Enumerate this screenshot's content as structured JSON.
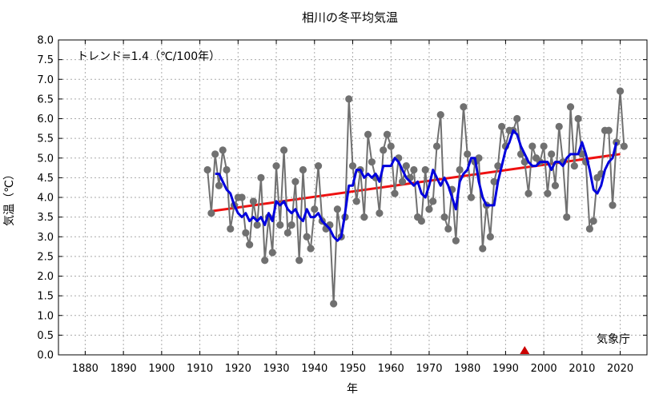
{
  "chart_data": {
    "type": "line",
    "title": "相川の冬平均気温",
    "xlabel": "年",
    "ylabel": "気温（℃）",
    "xlim": [
      1873,
      2027
    ],
    "ylim": [
      0,
      8
    ],
    "xticks": [
      1880,
      1890,
      1900,
      1910,
      1920,
      1930,
      1940,
      1950,
      1960,
      1970,
      1980,
      1990,
      2000,
      2010,
      2020
    ],
    "yticks": [
      0.0,
      0.5,
      1.0,
      1.5,
      2.0,
      2.5,
      3.0,
      3.5,
      4.0,
      4.5,
      5.0,
      5.5,
      6.0,
      6.5,
      7.0,
      7.5,
      8.0
    ],
    "grid": true,
    "trend_label": "トレンド=1.4（℃/100年）",
    "source_label": "気象庁",
    "colors": {
      "annual": "#707070",
      "moving_average": "#0000dd",
      "trend": "#ee1111",
      "marker": "#cc0000"
    },
    "series": [
      {
        "role": "annual",
        "x": [
          1912,
          1913,
          1914,
          1915,
          1916,
          1917,
          1918,
          1919,
          1920,
          1921,
          1922,
          1923,
          1924,
          1925,
          1926,
          1927,
          1928,
          1929,
          1930,
          1931,
          1932,
          1933,
          1934,
          1935,
          1936,
          1937,
          1938,
          1939,
          1940,
          1941,
          1942,
          1943,
          1944,
          1945,
          1946,
          1947,
          1948,
          1949,
          1950,
          1951,
          1952,
          1953,
          1954,
          1955,
          1956,
          1957,
          1958,
          1959,
          1960,
          1961,
          1962,
          1963,
          1964,
          1965,
          1966,
          1967,
          1968,
          1969,
          1970,
          1971,
          1972,
          1973,
          1974,
          1975,
          1976,
          1977,
          1978,
          1979,
          1980,
          1981,
          1982,
          1983,
          1984,
          1985,
          1986,
          1987,
          1988,
          1989,
          1990,
          1991,
          1992,
          1993,
          1994,
          1995,
          1996,
          1997,
          1998,
          1999,
          2000,
          2001,
          2002,
          2003,
          2004,
          2005,
          2006,
          2007,
          2008,
          2009,
          2010,
          2011,
          2012,
          2013,
          2014,
          2015,
          2016,
          2017,
          2018,
          2019,
          2020,
          2021
        ],
        "y": [
          4.7,
          3.6,
          5.1,
          4.3,
          5.2,
          4.7,
          3.2,
          3.8,
          4.0,
          4.0,
          3.1,
          2.8,
          3.9,
          3.3,
          4.5,
          2.4,
          3.5,
          2.6,
          4.8,
          3.3,
          5.2,
          3.1,
          3.3,
          4.4,
          2.4,
          4.7,
          3.0,
          2.7,
          3.7,
          4.8,
          3.4,
          3.2,
          3.3,
          1.3,
          3.7,
          3.0,
          3.5,
          6.5,
          4.8,
          3.9,
          4.7,
          3.5,
          5.6,
          4.9,
          4.5,
          3.6,
          5.2,
          5.6,
          5.3,
          4.1,
          5.0,
          4.4,
          4.8,
          4.5,
          4.7,
          3.5,
          3.4,
          4.7,
          3.7,
          3.9,
          5.3,
          6.1,
          3.5,
          3.2,
          4.2,
          2.9,
          4.7,
          6.3,
          5.1,
          4.0,
          4.9,
          5.0,
          2.7,
          3.8,
          3.0,
          4.4,
          4.8,
          5.8,
          5.3,
          5.7,
          5.7,
          6.0,
          5.1,
          4.9,
          4.1,
          5.3,
          5.0,
          4.9,
          5.3,
          4.1,
          5.1,
          4.3,
          5.8,
          4.9,
          3.5,
          6.3,
          4.8,
          6.0,
          5.1,
          4.9,
          3.2,
          3.4,
          4.5,
          4.6,
          5.7,
          5.7,
          3.8,
          5.4,
          6.7,
          5.3
        ]
      },
      {
        "role": "moving_average",
        "x": [
          1914,
          1915,
          1916,
          1917,
          1918,
          1919,
          1920,
          1921,
          1922,
          1923,
          1924,
          1925,
          1926,
          1927,
          1928,
          1929,
          1930,
          1931,
          1932,
          1933,
          1934,
          1935,
          1936,
          1937,
          1938,
          1939,
          1940,
          1941,
          1942,
          1943,
          1944,
          1945,
          1946,
          1947,
          1948,
          1949,
          1950,
          1951,
          1952,
          1953,
          1954,
          1955,
          1956,
          1957,
          1958,
          1959,
          1960,
          1961,
          1962,
          1963,
          1964,
          1965,
          1966,
          1967,
          1968,
          1969,
          1970,
          1971,
          1972,
          1973,
          1974,
          1975,
          1976,
          1977,
          1978,
          1979,
          1980,
          1981,
          1982,
          1983,
          1984,
          1985,
          1986,
          1987,
          1988,
          1989,
          1990,
          1991,
          1992,
          1993,
          1994,
          1995,
          1996,
          1997,
          1998,
          1999,
          2000,
          2001,
          2002,
          2003,
          2004,
          2005,
          2006,
          2007,
          2008,
          2009,
          2010,
          2011,
          2012,
          2013,
          2014,
          2015,
          2016,
          2017,
          2018,
          2019
        ],
        "y": [
          4.6,
          4.6,
          4.4,
          4.2,
          4.1,
          3.8,
          3.6,
          3.5,
          3.6,
          3.4,
          3.5,
          3.4,
          3.5,
          3.3,
          3.6,
          3.4,
          3.9,
          3.8,
          3.9,
          3.7,
          3.6,
          3.7,
          3.5,
          3.4,
          3.7,
          3.5,
          3.5,
          3.6,
          3.4,
          3.3,
          3.2,
          3.0,
          2.9,
          3.0,
          3.6,
          4.3,
          4.3,
          4.7,
          4.7,
          4.5,
          4.6,
          4.5,
          4.6,
          4.4,
          4.8,
          4.8,
          4.8,
          5.0,
          4.9,
          4.7,
          4.5,
          4.4,
          4.3,
          4.4,
          4.1,
          4.0,
          4.3,
          4.7,
          4.5,
          4.3,
          4.5,
          4.3,
          4.0,
          3.7,
          4.4,
          4.6,
          4.7,
          5.0,
          5.0,
          4.4,
          4.0,
          3.8,
          3.8,
          3.8,
          4.4,
          4.8,
          5.2,
          5.4,
          5.7,
          5.6,
          5.3,
          5.1,
          4.9,
          4.8,
          4.8,
          4.9,
          4.9,
          4.9,
          4.7,
          4.9,
          4.9,
          4.8,
          5.0,
          5.1,
          5.1,
          5.1,
          5.4,
          5.1,
          4.7,
          4.2,
          4.1,
          4.3,
          4.7,
          4.9,
          5.0,
          5.4
        ]
      },
      {
        "role": "trend",
        "x": [
          1913,
          2020
        ],
        "y": [
          3.65,
          5.1
        ]
      }
    ],
    "marker_years": [
      1995
    ]
  }
}
